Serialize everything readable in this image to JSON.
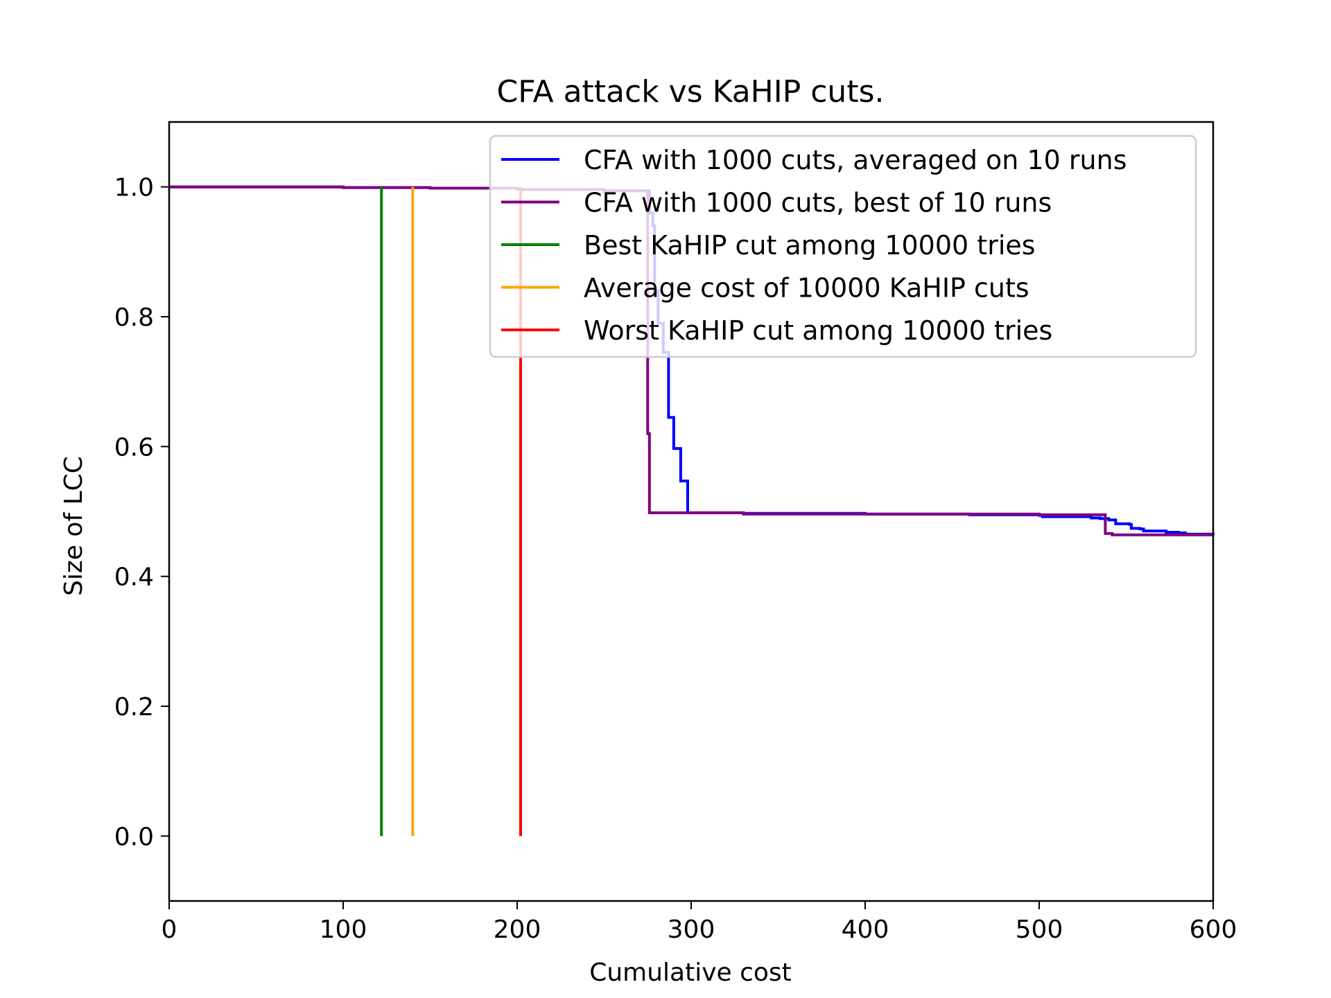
{
  "chart_data": {
    "type": "line",
    "title": "CFA attack vs KaHIP cuts.",
    "xlabel": "Cumulative cost",
    "ylabel": "Size of LCC",
    "xlim": [
      0,
      600
    ],
    "ylim": [
      -0.1,
      1.1
    ],
    "x_ticks": [
      0,
      100,
      200,
      300,
      400,
      500,
      600
    ],
    "x_tick_labels": [
      "0",
      "100",
      "200",
      "300",
      "400",
      "500",
      "600"
    ],
    "y_ticks": [
      0.0,
      0.2,
      0.4,
      0.6,
      0.8,
      1.0
    ],
    "y_tick_labels": [
      "0.0",
      "0.2",
      "0.4",
      "0.6",
      "0.8",
      "1.0"
    ],
    "grid": false,
    "legend_position": "top-right",
    "series": [
      {
        "name": "CFA with 1000 cuts, averaged on 10 runs",
        "color": "#0000ff",
        "style": "step",
        "points": [
          [
            0,
            1.0
          ],
          [
            50,
            1.0
          ],
          [
            100,
            0.999
          ],
          [
            150,
            0.998
          ],
          [
            200,
            0.996
          ],
          [
            250,
            0.994
          ],
          [
            275,
            0.994
          ],
          [
            276,
            0.96
          ],
          [
            278,
            0.94
          ],
          [
            279,
            0.84
          ],
          [
            281,
            0.79
          ],
          [
            283,
            0.79
          ],
          [
            284,
            0.745
          ],
          [
            286,
            0.745
          ],
          [
            287,
            0.645
          ],
          [
            289,
            0.645
          ],
          [
            290,
            0.597
          ],
          [
            293,
            0.597
          ],
          [
            294,
            0.547
          ],
          [
            296,
            0.547
          ],
          [
            298,
            0.498
          ],
          [
            300,
            0.498
          ],
          [
            330,
            0.497
          ],
          [
            400,
            0.496
          ],
          [
            460,
            0.495
          ],
          [
            500,
            0.494
          ],
          [
            502,
            0.492
          ],
          [
            530,
            0.49
          ],
          [
            535,
            0.489
          ],
          [
            540,
            0.487
          ],
          [
            544,
            0.481
          ],
          [
            552,
            0.48
          ],
          [
            553,
            0.474
          ],
          [
            558,
            0.473
          ],
          [
            560,
            0.47
          ],
          [
            572,
            0.47
          ],
          [
            573,
            0.468
          ],
          [
            580,
            0.467
          ],
          [
            584,
            0.465
          ],
          [
            600,
            0.464
          ]
        ]
      },
      {
        "name": "CFA with 1000 cuts, best of 10 runs",
        "color": "#800080",
        "style": "step",
        "points": [
          [
            0,
            1.0
          ],
          [
            50,
            1.0
          ],
          [
            100,
            0.999
          ],
          [
            150,
            0.998
          ],
          [
            200,
            0.996
          ],
          [
            250,
            0.994
          ],
          [
            274,
            0.994
          ],
          [
            275,
            0.62
          ],
          [
            276,
            0.498
          ],
          [
            300,
            0.498
          ],
          [
            330,
            0.496
          ],
          [
            400,
            0.496
          ],
          [
            500,
            0.495
          ],
          [
            537,
            0.495
          ],
          [
            538,
            0.466
          ],
          [
            541,
            0.466
          ],
          [
            542,
            0.464
          ],
          [
            600,
            0.464
          ]
        ]
      },
      {
        "name": "Best KaHIP cut among 10000 tries",
        "color": "#008000",
        "style": "vline",
        "x": 122,
        "y": [
          0.0,
          1.0
        ]
      },
      {
        "name": "Average cost of 10000 KaHIP cuts",
        "color": "#ffa500",
        "style": "vline",
        "x": 140,
        "y": [
          0.0,
          1.0
        ]
      },
      {
        "name": "Worst KaHIP cut among 10000 tries",
        "color": "#ff0000",
        "style": "vline",
        "x": 202,
        "y": [
          0.0,
          1.0
        ]
      }
    ]
  }
}
